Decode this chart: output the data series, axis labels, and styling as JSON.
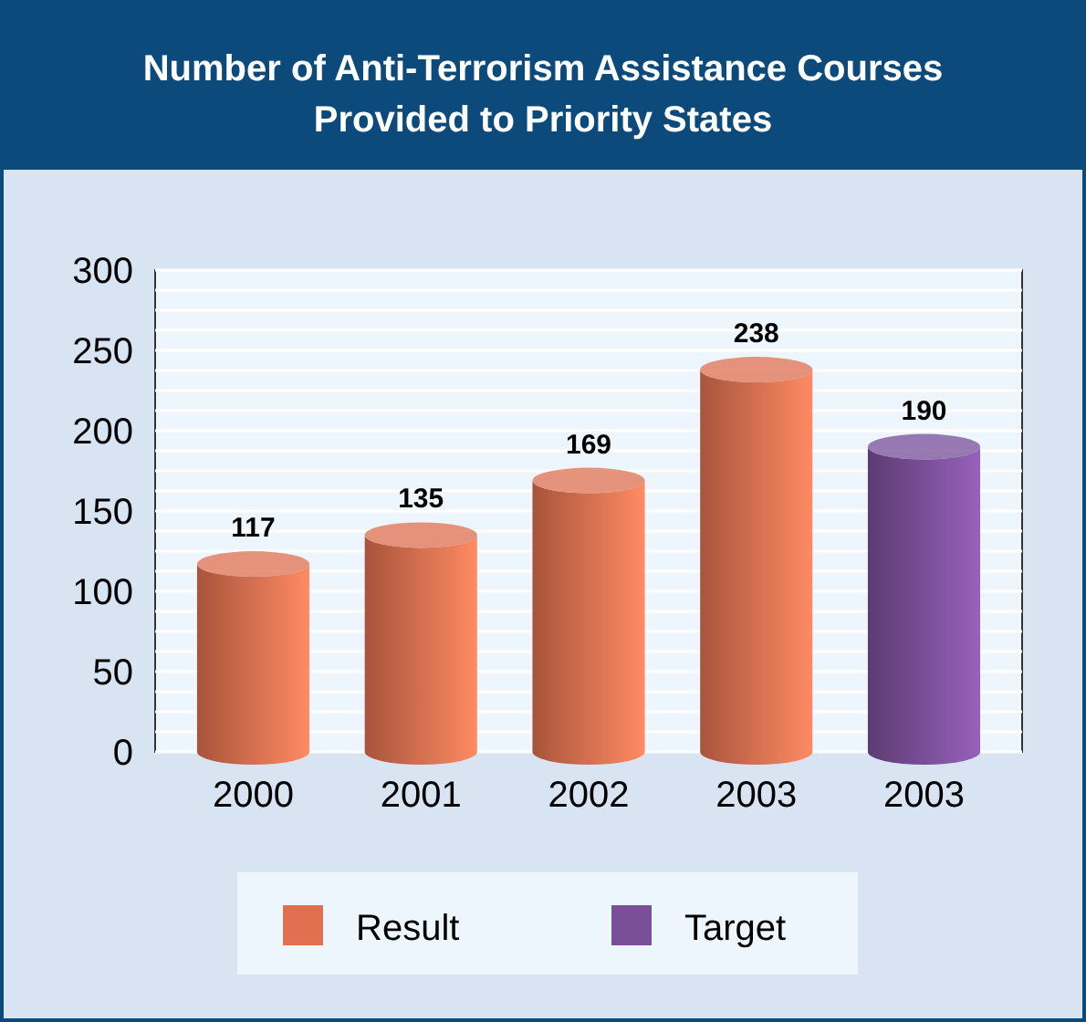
{
  "chart_data": {
    "type": "bar",
    "title": "Number of Anti-Terrorism Assistance Courses\nProvided to Priority States",
    "categories": [
      "2000",
      "2001",
      "2002",
      "2003",
      "2003"
    ],
    "series": [
      {
        "name": "Result",
        "color": "#e07050",
        "values": [
          117,
          135,
          169,
          238,
          null
        ]
      },
      {
        "name": "Target",
        "color": "#7a4e98",
        "values": [
          null,
          null,
          null,
          null,
          190
        ]
      }
    ],
    "ylim": [
      0,
      300
    ],
    "yticks": [
      0,
      50,
      100,
      150,
      200,
      250,
      300
    ],
    "grid": "y",
    "legend": "bottom",
    "data_labels": true
  }
}
